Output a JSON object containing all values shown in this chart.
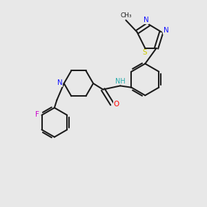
{
  "bg_color": "#e8e8e8",
  "bond_color": "#1a1a1a",
  "atom_colors": {
    "N": "#1414ff",
    "O": "#ff0000",
    "S": "#cccc00",
    "F": "#cc00cc",
    "C": "#1a1a1a",
    "NH": "#22aaaa",
    "H": "#22aaaa"
  },
  "lw": 1.5,
  "fontsize": 7.5
}
